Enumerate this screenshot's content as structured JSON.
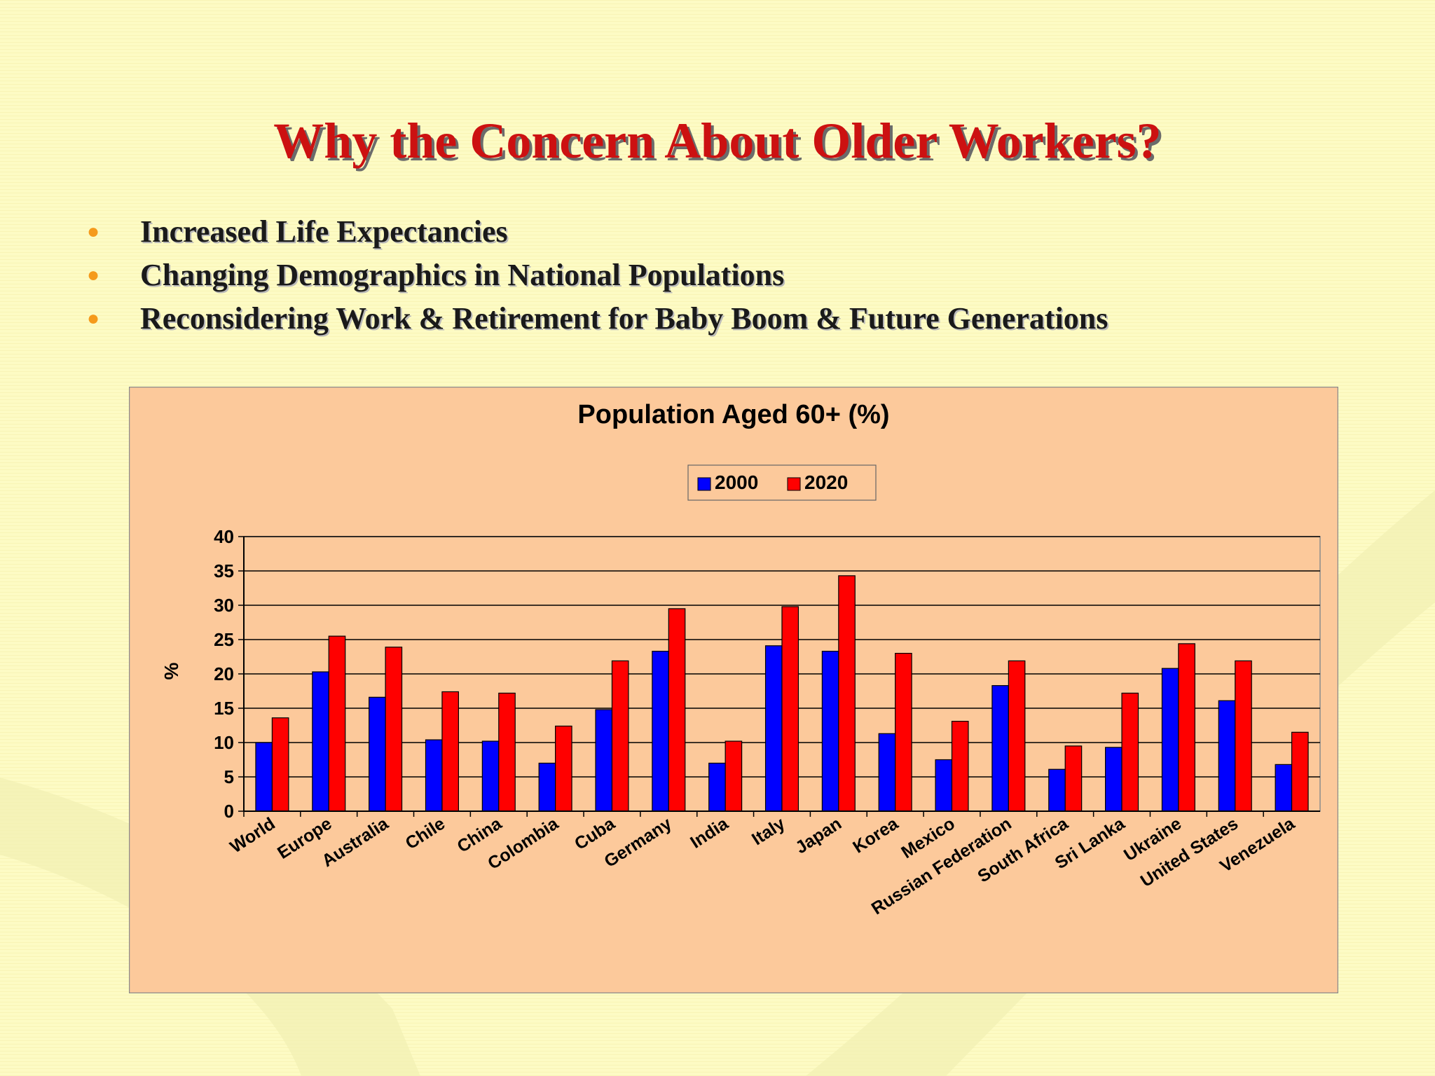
{
  "slide": {
    "title": "Why the Concern About Older Workers?",
    "bullets": [
      "Increased Life Expectancies",
      "Changing Demographics in National Populations",
      "Reconsidering Work & Retirement for Baby Boom & Future Generations"
    ]
  },
  "colors": {
    "background": "#fdfbc4",
    "title": "#cc1111",
    "bullet_marker": "#f59a1c",
    "chart_panel": "#fcc99b",
    "series_2000": "#0000ff",
    "series_2020": "#ff0000"
  },
  "chart_data": {
    "type": "bar",
    "title": "Population Aged 60+ (%)",
    "xlabel": "",
    "ylabel": "%",
    "ylim": [
      0,
      40
    ],
    "yticks": [
      0,
      5,
      10,
      15,
      20,
      25,
      30,
      35,
      40
    ],
    "grid": true,
    "legend": "top-center",
    "categories": [
      "World",
      "Europe",
      "Australia",
      "Chile",
      "China",
      "Colombia",
      "Cuba",
      "Germany",
      "India",
      "Italy",
      "Japan",
      "Korea",
      "Mexico",
      "Russian Federation",
      "South Africa",
      "Sri Lanka",
      "Ukraine",
      "United States",
      "Venezuela"
    ],
    "series": [
      {
        "name": "2000",
        "color": "#0000ff",
        "values": [
          10.0,
          20.3,
          16.6,
          10.4,
          10.2,
          7.0,
          14.8,
          23.3,
          7.0,
          24.1,
          23.3,
          11.3,
          7.5,
          18.3,
          6.1,
          9.3,
          20.8,
          16.1,
          6.8
        ]
      },
      {
        "name": "2020",
        "color": "#ff0000",
        "values": [
          13.6,
          25.5,
          23.9,
          17.4,
          17.2,
          12.4,
          21.9,
          29.5,
          10.2,
          29.8,
          34.3,
          23.0,
          13.1,
          21.9,
          9.5,
          17.2,
          24.4,
          21.9,
          11.5
        ]
      }
    ]
  }
}
